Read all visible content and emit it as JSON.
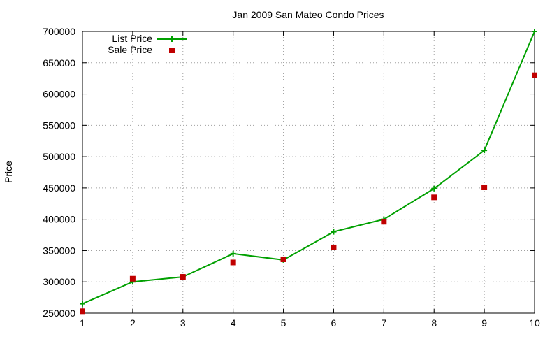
{
  "chart_data": {
    "type": "line",
    "title": "Jan 2009 San Mateo Condo Prices",
    "xlabel": "",
    "ylabel": "Price",
    "x": [
      1,
      2,
      3,
      4,
      5,
      6,
      7,
      8,
      9,
      10
    ],
    "xlim": [
      1,
      10
    ],
    "ylim": [
      250000,
      700000
    ],
    "x_ticks": [
      "1",
      "2",
      "3",
      "4",
      "5",
      "6",
      "7",
      "8",
      "9",
      "10"
    ],
    "y_ticks": [
      "250000",
      "300000",
      "350000",
      "400000",
      "450000",
      "500000",
      "550000",
      "600000",
      "650000",
      "700000"
    ],
    "grid": true,
    "legend_position": "top-left",
    "series": [
      {
        "name": "List Price",
        "style": "line-points",
        "color": "#00a000",
        "values": [
          265000,
          300000,
          308000,
          345000,
          335000,
          380000,
          400000,
          449000,
          510000,
          700000
        ]
      },
      {
        "name": "Sale Price",
        "style": "points",
        "color": "#c00000",
        "values": [
          253000,
          305000,
          308000,
          331000,
          336000,
          355000,
          396000,
          435000,
          451000,
          630000
        ]
      }
    ]
  }
}
